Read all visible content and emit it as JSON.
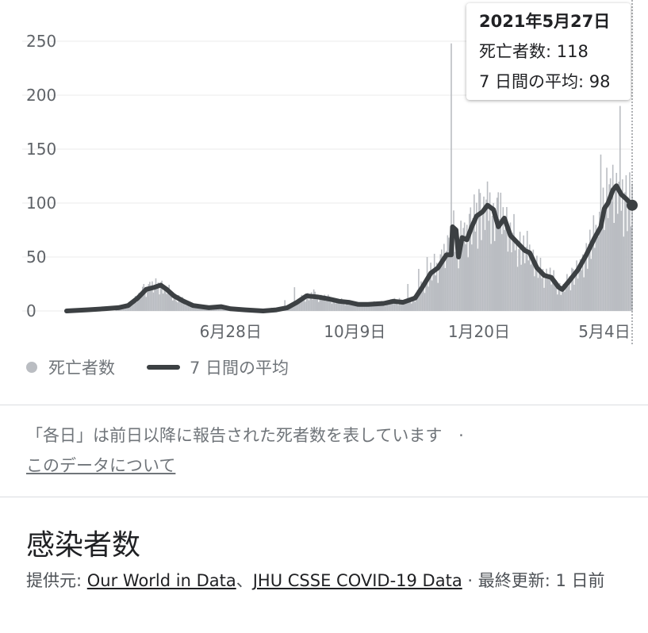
{
  "chart_data": {
    "type": "bar",
    "title": "",
    "xlabel": "",
    "ylabel": "",
    "ylim": [
      0,
      250
    ],
    "yticks": [
      0,
      50,
      100,
      150,
      200,
      250
    ],
    "xticks": [
      {
        "date": "2020-06-28",
        "label": "6月28日"
      },
      {
        "date": "2020-10-09",
        "label": "10月9日"
      },
      {
        "date": "2021-01-20",
        "label": "1月20日"
      },
      {
        "date": "2021-05-04",
        "label": "5月4日"
      }
    ],
    "x_start": "2020-02-13",
    "x_end": "2021-05-27",
    "grid": true,
    "legend_position": "bottom-left",
    "series": [
      {
        "name": "死亡者数",
        "style": "bars",
        "color": "#babdc2",
        "points": [
          [
            "2020-03-25",
            1
          ],
          [
            "2020-04-04",
            6
          ],
          [
            "2020-04-10",
            14
          ],
          [
            "2020-04-17",
            25
          ],
          [
            "2020-04-22",
            27
          ],
          [
            "2020-04-28",
            23
          ],
          [
            "2020-05-05",
            20
          ],
          [
            "2020-05-15",
            8
          ],
          [
            "2020-05-29",
            4
          ],
          [
            "2020-06-15",
            5
          ],
          [
            "2020-06-28",
            2
          ],
          [
            "2020-07-15",
            2
          ],
          [
            "2020-08-01",
            3
          ],
          [
            "2020-08-12",
            10
          ],
          [
            "2020-08-20",
            22
          ],
          [
            "2020-08-28",
            15
          ],
          [
            "2020-09-05",
            20
          ],
          [
            "2020-09-12",
            12
          ],
          [
            "2020-09-25",
            9
          ],
          [
            "2020-10-09",
            7
          ],
          [
            "2020-10-25",
            9
          ],
          [
            "2020-11-05",
            10
          ],
          [
            "2020-11-15",
            12
          ],
          [
            "2020-11-22",
            25
          ],
          [
            "2020-12-01",
            39
          ],
          [
            "2020-12-08",
            50
          ],
          [
            "2020-12-14",
            53
          ],
          [
            "2020-12-20",
            57
          ],
          [
            "2020-12-26",
            68
          ],
          [
            "2020-12-28",
            248
          ],
          [
            "2021-01-02",
            75
          ],
          [
            "2021-01-08",
            82
          ],
          [
            "2021-01-12",
            90
          ],
          [
            "2021-01-16",
            108
          ],
          [
            "2021-01-20",
            113
          ],
          [
            "2021-01-24",
            106
          ],
          [
            "2021-01-27",
            120
          ],
          [
            "2021-02-01",
            100
          ],
          [
            "2021-02-05",
            110
          ],
          [
            "2021-02-10",
            75
          ],
          [
            "2021-02-15",
            82
          ],
          [
            "2021-02-20",
            65
          ],
          [
            "2021-02-26",
            70
          ],
          [
            "2021-03-04",
            43
          ],
          [
            "2021-03-11",
            37
          ],
          [
            "2021-03-18",
            30
          ],
          [
            "2021-03-24",
            26
          ],
          [
            "2021-03-31",
            25
          ],
          [
            "2021-04-07",
            40
          ],
          [
            "2021-04-14",
            48
          ],
          [
            "2021-04-21",
            62
          ],
          [
            "2021-04-28",
            75
          ],
          [
            "2021-05-01",
            145
          ],
          [
            "2021-05-05",
            100
          ],
          [
            "2021-05-09",
            123
          ],
          [
            "2021-05-14",
            128
          ],
          [
            "2021-05-17",
            190
          ],
          [
            "2021-05-21",
            110
          ],
          [
            "2021-05-24",
            98
          ],
          [
            "2021-05-27",
            118
          ]
        ]
      },
      {
        "name": "7 日間の平均",
        "style": "line",
        "color": "#3c4043",
        "points": [
          [
            "2020-02-13",
            0
          ],
          [
            "2020-03-01",
            1
          ],
          [
            "2020-03-15",
            2
          ],
          [
            "2020-03-27",
            3
          ],
          [
            "2020-04-04",
            5
          ],
          [
            "2020-04-12",
            12
          ],
          [
            "2020-04-19",
            20
          ],
          [
            "2020-04-26",
            22
          ],
          [
            "2020-05-01",
            24
          ],
          [
            "2020-05-06",
            20
          ],
          [
            "2020-05-12",
            14
          ],
          [
            "2020-05-20",
            9
          ],
          [
            "2020-05-28",
            5
          ],
          [
            "2020-06-10",
            3
          ],
          [
            "2020-06-20",
            4
          ],
          [
            "2020-06-28",
            2
          ],
          [
            "2020-07-10",
            1
          ],
          [
            "2020-07-25",
            0
          ],
          [
            "2020-08-05",
            1
          ],
          [
            "2020-08-14",
            3
          ],
          [
            "2020-08-22",
            8
          ],
          [
            "2020-08-30",
            14
          ],
          [
            "2020-09-08",
            13
          ],
          [
            "2020-09-18",
            11
          ],
          [
            "2020-09-26",
            9
          ],
          [
            "2020-10-04",
            8
          ],
          [
            "2020-10-12",
            6
          ],
          [
            "2020-10-20",
            6
          ],
          [
            "2020-11-02",
            7
          ],
          [
            "2020-11-10",
            9
          ],
          [
            "2020-11-18",
            8
          ],
          [
            "2020-11-28",
            12
          ],
          [
            "2020-12-04",
            22
          ],
          [
            "2020-12-11",
            35
          ],
          [
            "2020-12-17",
            40
          ],
          [
            "2020-12-24",
            52
          ],
          [
            "2020-12-28",
            52
          ],
          [
            "2020-12-29",
            78
          ],
          [
            "2021-01-01",
            75
          ],
          [
            "2021-01-03",
            50
          ],
          [
            "2021-01-06",
            68
          ],
          [
            "2021-01-10",
            66
          ],
          [
            "2021-01-14",
            78
          ],
          [
            "2021-01-18",
            88
          ],
          [
            "2021-01-23",
            92
          ],
          [
            "2021-01-27",
            98
          ],
          [
            "2021-02-01",
            94
          ],
          [
            "2021-02-05",
            78
          ],
          [
            "2021-02-10",
            86
          ],
          [
            "2021-02-15",
            70
          ],
          [
            "2021-02-21",
            63
          ],
          [
            "2021-02-27",
            56
          ],
          [
            "2021-03-03",
            54
          ],
          [
            "2021-03-09",
            40
          ],
          [
            "2021-03-15",
            33
          ],
          [
            "2021-03-21",
            31
          ],
          [
            "2021-03-27",
            22
          ],
          [
            "2021-03-30",
            20
          ],
          [
            "2021-04-05",
            28
          ],
          [
            "2021-04-12",
            38
          ],
          [
            "2021-04-19",
            52
          ],
          [
            "2021-04-26",
            68
          ],
          [
            "2021-05-01",
            78
          ],
          [
            "2021-05-04",
            95
          ],
          [
            "2021-05-07",
            100
          ],
          [
            "2021-05-11",
            112
          ],
          [
            "2021-05-14",
            116
          ],
          [
            "2021-05-18",
            108
          ],
          [
            "2021-05-22",
            104
          ],
          [
            "2021-05-27",
            98
          ]
        ]
      }
    ]
  },
  "tooltip": {
    "date": "2021年5月27日",
    "deaths_label": "死亡者数: 118",
    "avg_label": "7 日間の平均: 98"
  },
  "legend": {
    "bars_label": "死亡者数",
    "line_label": "7 日間の平均"
  },
  "note": {
    "text": "「各日」は前日以降に報告された死者数を表しています",
    "separator": "·",
    "link": "このデータについて"
  },
  "next_section": {
    "title": "感染者数",
    "source_prefix": "提供元: ",
    "source_link_1": "Our World in Data",
    "source_joiner": "、",
    "source_link_2": "JHU CSSE COVID-19 Data",
    "updated": " · 最終更新: 1 日前"
  }
}
